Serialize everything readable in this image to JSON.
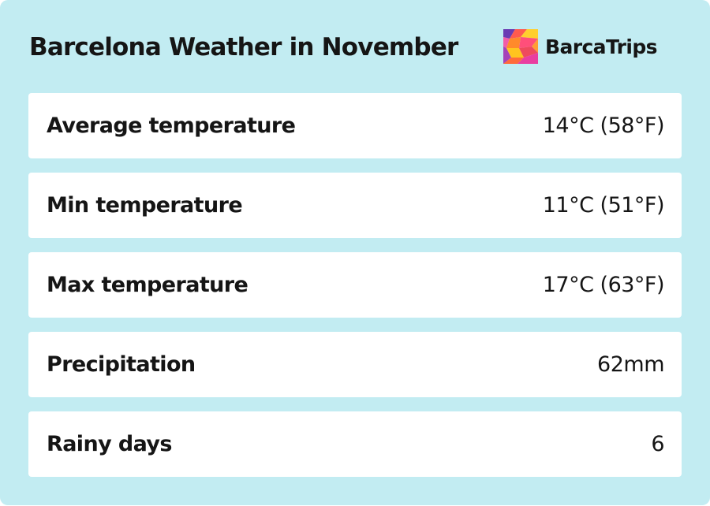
{
  "header": {
    "title": "Barcelona Weather in November"
  },
  "brand": {
    "name": "BarcaTrips",
    "logo_icon": "colorful-mosaic-logo"
  },
  "weather_rows": [
    {
      "label": "Average temperature",
      "value": "14°C (58°F)"
    },
    {
      "label": "Min temperature",
      "value": "11°C (51°F)"
    },
    {
      "label": "Max temperature",
      "value": "17°C (63°F)"
    },
    {
      "label": "Precipitation",
      "value": "62mm"
    },
    {
      "label": "Rainy days",
      "value": "6"
    }
  ],
  "colors": {
    "background": "#c2ecf2",
    "row_background": "#ffffff",
    "text": "#151515"
  }
}
